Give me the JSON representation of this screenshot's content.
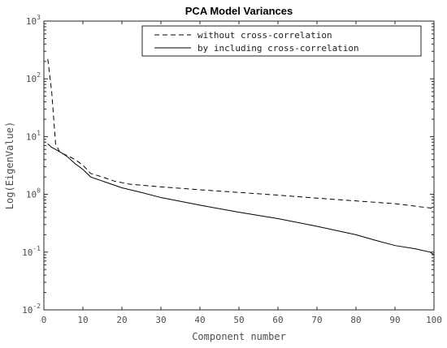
{
  "chart_data": {
    "type": "line",
    "title": "PCA Model Variances",
    "xlabel": "Component number",
    "ylabel": "Log(EigenValue)",
    "xlim": [
      0,
      100
    ],
    "ylim": [
      0.01,
      1000
    ],
    "yscale": "log",
    "grid": false,
    "legend_position": "top-right",
    "x_ticks": [
      0,
      10,
      20,
      30,
      40,
      50,
      60,
      70,
      80,
      90,
      100
    ],
    "y_ticks": [
      0.01,
      0.1,
      1,
      10,
      100,
      1000
    ],
    "y_tick_labels": [
      {
        "base": "10",
        "exp": "-2"
      },
      {
        "base": "10",
        "exp": "-1"
      },
      {
        "base": "10",
        "exp": "0"
      },
      {
        "base": "10",
        "exp": "1"
      },
      {
        "base": "10",
        "exp": "2"
      },
      {
        "base": "10",
        "exp": "3"
      }
    ],
    "series": [
      {
        "name": "without cross-correlation",
        "style": "dashed",
        "color": "#000000",
        "x": [
          1,
          2,
          3,
          4,
          5,
          6,
          8,
          10,
          12,
          15,
          18,
          22,
          30,
          40,
          50,
          60,
          70,
          80,
          90,
          100
        ],
        "y": [
          220,
          60,
          7.5,
          5.5,
          5.0,
          4.7,
          4.0,
          3.2,
          2.3,
          2.0,
          1.7,
          1.5,
          1.35,
          1.2,
          1.08,
          0.97,
          0.86,
          0.77,
          0.69,
          0.57
        ]
      },
      {
        "name": "by including cross-correlation",
        "style": "solid",
        "color": "#000000",
        "x": [
          1,
          2,
          3,
          4,
          5,
          6,
          8,
          10,
          12,
          15,
          20,
          25,
          30,
          40,
          50,
          60,
          70,
          80,
          85,
          90,
          95,
          99,
          100
        ],
        "y": [
          7.5,
          6.5,
          6.0,
          5.5,
          5.0,
          4.5,
          3.4,
          2.7,
          2.0,
          1.7,
          1.3,
          1.08,
          0.88,
          0.65,
          0.49,
          0.38,
          0.28,
          0.2,
          0.16,
          0.13,
          0.115,
          0.1,
          0.09
        ]
      }
    ]
  }
}
